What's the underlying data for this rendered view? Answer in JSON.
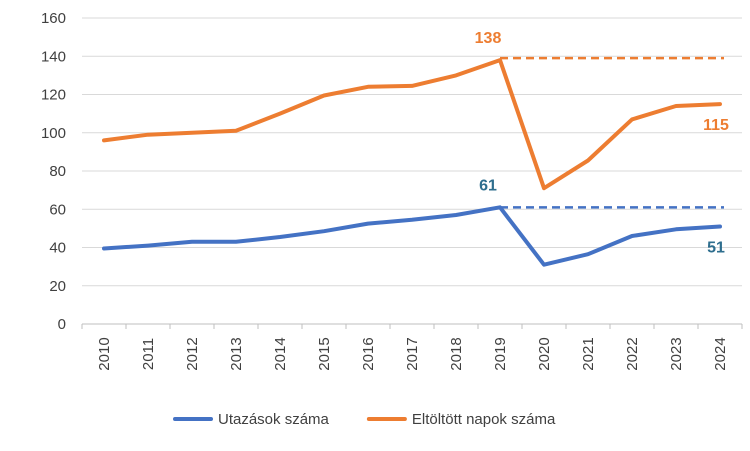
{
  "chart_data": {
    "type": "line",
    "categories": [
      "2010",
      "2011",
      "2012",
      "2013",
      "2014",
      "2015",
      "2016",
      "2017",
      "2018",
      "2019",
      "2020",
      "2021",
      "2022",
      "2023",
      "2024"
    ],
    "ylim": [
      0,
      160
    ],
    "yticks": [
      0,
      20,
      40,
      60,
      80,
      100,
      120,
      140,
      160
    ],
    "grid": true,
    "legend": "bottom",
    "series": [
      {
        "name": "Utazások száma",
        "color": "#4472C4",
        "values": [
          39.5,
          41,
          43,
          43,
          45.5,
          48.5,
          52.5,
          54.5,
          57,
          61,
          31,
          36.5,
          46,
          49.5,
          51
        ],
        "reference_line": {
          "from": "2019",
          "to": "2024",
          "value": 61,
          "style": "dashed"
        },
        "labels": [
          {
            "category": "2019",
            "text": "61"
          },
          {
            "category": "2024",
            "text": "51"
          }
        ],
        "label_color": "#2E6E8E"
      },
      {
        "name": "Eltöltött napok száma",
        "color": "#ED7D31",
        "values": [
          96,
          99,
          100,
          101,
          110,
          119.5,
          124,
          124.5,
          130,
          138,
          71,
          85.5,
          107,
          114,
          115
        ],
        "reference_line": {
          "from": "2019",
          "to": "2024",
          "value": 139,
          "style": "dashed"
        },
        "labels": [
          {
            "category": "2019",
            "text": "138"
          },
          {
            "category": "2024",
            "text": "115"
          }
        ],
        "label_color": "#ED7D31"
      }
    ]
  }
}
